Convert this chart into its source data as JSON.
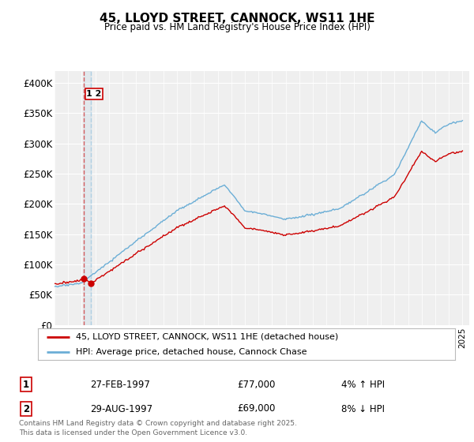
{
  "title": "45, LLOYD STREET, CANNOCK, WS11 1HE",
  "subtitle": "Price paid vs. HM Land Registry's House Price Index (HPI)",
  "legend_line1": "45, LLOYD STREET, CANNOCK, WS11 1HE (detached house)",
  "legend_line2": "HPI: Average price, detached house, Cannock Chase",
  "transaction1_date": "27-FEB-1997",
  "transaction1_price": "£77,000",
  "transaction1_hpi": "4% ↑ HPI",
  "transaction2_date": "29-AUG-1997",
  "transaction2_price": "£69,000",
  "transaction2_hpi": "8% ↓ HPI",
  "footnote": "Contains HM Land Registry data © Crown copyright and database right 2025.\nThis data is licensed under the Open Government Licence v3.0.",
  "red_line_color": "#cc0000",
  "blue_line_color": "#6baed6",
  "ylim_min": 0,
  "ylim_max": 420000,
  "yticks": [
    0,
    50000,
    100000,
    150000,
    200000,
    250000,
    300000,
    350000,
    400000
  ],
  "ytick_labels": [
    "£0",
    "£50K",
    "£100K",
    "£150K",
    "£200K",
    "£250K",
    "£300K",
    "£350K",
    "£400K"
  ],
  "background_color": "#ffffff",
  "plot_bg_color": "#efefef",
  "t1_year": 1997.15,
  "t1_price": 77000,
  "t2_year": 1997.66,
  "t2_price": 69000
}
